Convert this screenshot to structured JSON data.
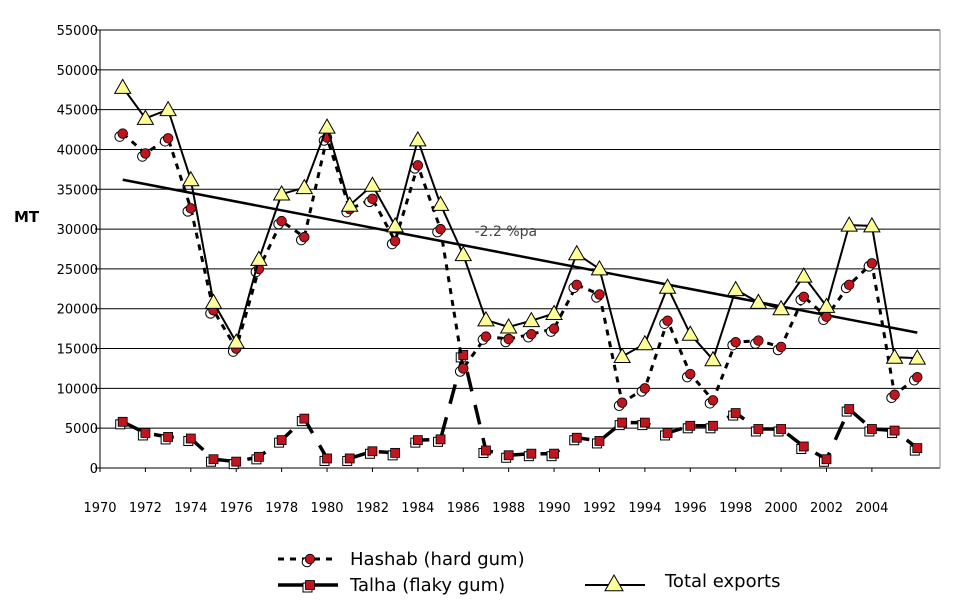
{
  "chart_data": {
    "type": "line",
    "ylabel": "MT",
    "xlabel": "",
    "ylim": [
      0,
      55000
    ],
    "yticks": [
      0,
      5000,
      10000,
      15000,
      20000,
      25000,
      30000,
      35000,
      40000,
      45000,
      50000,
      55000
    ],
    "xlim": [
      1970,
      2007
    ],
    "xticks": [
      1970,
      1972,
      1974,
      1976,
      1978,
      1980,
      1982,
      1984,
      1986,
      1988,
      1990,
      1992,
      1994,
      1996,
      1998,
      2000,
      2002,
      2004
    ],
    "grid": "horizontal",
    "legend_position": "bottom",
    "x": [
      1971,
      1972,
      1973,
      1974,
      1975,
      1976,
      1977,
      1978,
      1979,
      1980,
      1981,
      1982,
      1983,
      1984,
      1985,
      1986,
      1987,
      1988,
      1989,
      1990,
      1991,
      1992,
      1993,
      1994,
      1995,
      1996,
      1997,
      1998,
      1999,
      2000,
      2001,
      2002,
      2003,
      2004,
      2005,
      2006
    ],
    "series": [
      {
        "name": "Hashab (hard gum)",
        "style": "dotted",
        "marker": "circle",
        "values": [
          42000,
          39500,
          41400,
          32600,
          19800,
          15000,
          25000,
          31000,
          29000,
          41500,
          32500,
          33800,
          28500,
          38000,
          30000,
          12500,
          16500,
          16200,
          16800,
          17500,
          23000,
          21800,
          8200,
          10000,
          18500,
          11800,
          8500,
          15800,
          16000,
          15200,
          21500,
          19000,
          23000,
          25700,
          9200,
          11400
        ]
      },
      {
        "name": "Talha (flaky gum)",
        "style": "solid-bold",
        "marker": "square",
        "values": [
          5800,
          4400,
          3900,
          3700,
          1100,
          800,
          1400,
          3500,
          6200,
          1200,
          1200,
          2100,
          1900,
          3500,
          3600,
          14200,
          2200,
          1600,
          1800,
          1800,
          3800,
          3400,
          5700,
          5700,
          4400,
          5300,
          5300,
          6900,
          4900,
          4900,
          2700,
          1100,
          7400,
          4900,
          4700,
          2500
        ]
      },
      {
        "name": "Total exports",
        "style": "solid",
        "marker": "triangle",
        "values": [
          47800,
          43900,
          45000,
          36200,
          20800,
          15800,
          26200,
          34400,
          35200,
          42800,
          33000,
          35500,
          30400,
          41200,
          33100,
          26800,
          18600,
          17700,
          18500,
          19400,
          26900,
          25000,
          14000,
          15600,
          22700,
          16800,
          13600,
          22400,
          20800,
          20000,
          24100,
          20300,
          30500,
          30400,
          13900,
          13800
        ]
      }
    ],
    "trend": {
      "label": "-2.2 %pa",
      "style": "solid",
      "from": {
        "x": 1971,
        "y": 36200
      },
      "to": {
        "x": 2006,
        "y": 17000
      }
    }
  },
  "colors": {
    "marker_red": "#c0151f",
    "triangle_fill": "#ffff99",
    "line": "#000000",
    "grid": "#000000"
  }
}
